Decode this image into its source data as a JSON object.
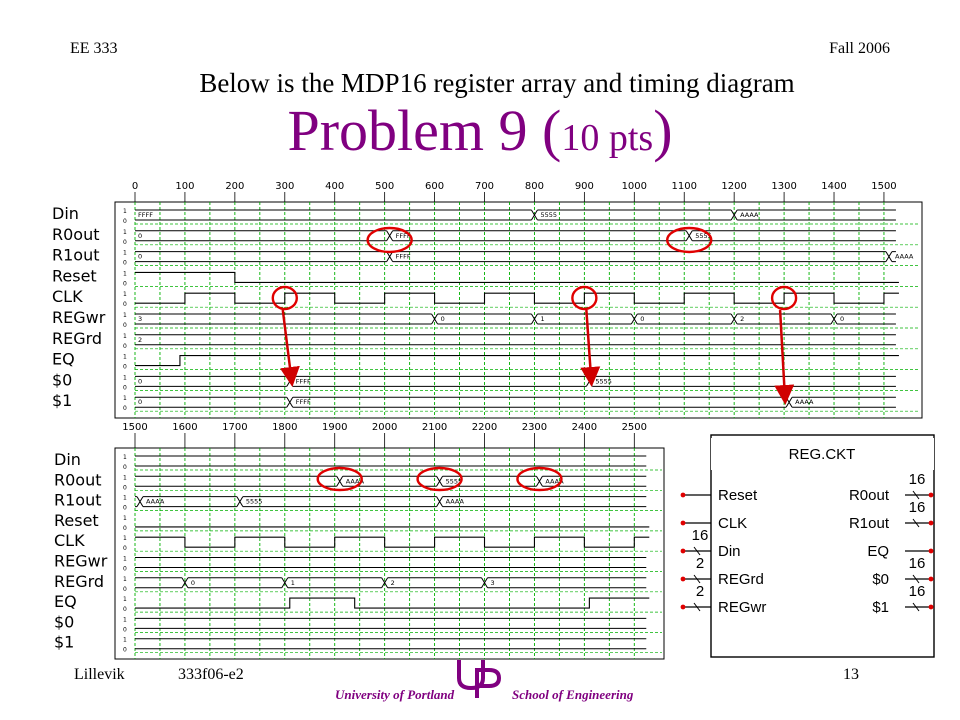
{
  "header": {
    "course": "EE 333",
    "term": "Fall 2006"
  },
  "subtitle": "Below is the MDP16 register array and timing diagram",
  "title": {
    "main": "Problem 9 (",
    "points": "10 pts",
    "close": ")"
  },
  "footer": {
    "author": "Lillevik",
    "code": "333f06-e2",
    "page": "13",
    "university": "University of Portland",
    "school": "School of Engineering"
  },
  "level_labels": [
    "1",
    "0"
  ],
  "timing_top": {
    "ticks": [
      "0",
      "100",
      "200",
      "300",
      "400",
      "500",
      "600",
      "700",
      "800",
      "900",
      "1000",
      "1100",
      "1200",
      "1300",
      "1400",
      "1500"
    ],
    "signals": [
      {
        "name": "Din",
        "values": [
          {
            "t": 0,
            "v": "FFFF"
          },
          {
            "t": 800,
            "v": "5555"
          },
          {
            "t": 1200,
            "v": "AAAA"
          }
        ]
      },
      {
        "name": "R0out",
        "values": [
          {
            "t": 0,
            "v": "0"
          },
          {
            "t": 510,
            "v": "FFFF"
          },
          {
            "t": 1110,
            "v": "5555"
          }
        ]
      },
      {
        "name": "R1out",
        "values": [
          {
            "t": 0,
            "v": "0"
          },
          {
            "t": 510,
            "v": "FFFF"
          },
          {
            "t": 1510,
            "v": "AAAA"
          }
        ]
      },
      {
        "name": "Reset",
        "wave": [
          [
            0,
            1
          ],
          [
            200,
            0
          ]
        ]
      },
      {
        "name": "CLK",
        "wave": [
          [
            0,
            0
          ],
          [
            100,
            1
          ],
          [
            200,
            0
          ],
          [
            300,
            1
          ],
          [
            400,
            0
          ],
          [
            500,
            1
          ],
          [
            600,
            0
          ],
          [
            700,
            1
          ],
          [
            800,
            0
          ],
          [
            900,
            1
          ],
          [
            1000,
            0
          ],
          [
            1100,
            1
          ],
          [
            1200,
            0
          ],
          [
            1300,
            1
          ],
          [
            1400,
            0
          ],
          [
            1500,
            1
          ]
        ]
      },
      {
        "name": "REGwr",
        "values": [
          {
            "t": 0,
            "v": "3"
          },
          {
            "t": 600,
            "v": "0"
          },
          {
            "t": 800,
            "v": "1"
          },
          {
            "t": 1000,
            "v": "0"
          },
          {
            "t": 1200,
            "v": "2"
          },
          {
            "t": 1400,
            "v": "0"
          }
        ]
      },
      {
        "name": "REGrd",
        "values": [
          {
            "t": 0,
            "v": "2"
          }
        ]
      },
      {
        "name": "EQ",
        "wave": [
          [
            0,
            0
          ],
          [
            90,
            1
          ]
        ]
      },
      {
        "name": "$0",
        "values": [
          {
            "t": 0,
            "v": "0"
          },
          {
            "t": 310,
            "v": "FFFF"
          },
          {
            "t": 910,
            "v": "5555"
          }
        ]
      },
      {
        "name": "$1",
        "values": [
          {
            "t": 0,
            "v": "0"
          },
          {
            "t": 310,
            "v": "FFFF"
          },
          {
            "t": 1310,
            "v": "AAAA"
          }
        ]
      }
    ]
  },
  "timing_bottom": {
    "ticks": [
      "1500",
      "1600",
      "1700",
      "1800",
      "1900",
      "2000",
      "2100",
      "2200",
      "2300",
      "2400",
      "2500"
    ],
    "signals": [
      {
        "name": "Din",
        "values": [
          {
            "t": 1500,
            "v": ""
          }
        ]
      },
      {
        "name": "R0out",
        "values": [
          {
            "t": 1500,
            "v": ""
          },
          {
            "t": 1910,
            "v": "AAAA"
          },
          {
            "t": 2110,
            "v": "5555"
          },
          {
            "t": 2310,
            "v": "AAAA"
          }
        ]
      },
      {
        "name": "R1out",
        "values": [
          {
            "t": 1500,
            "v": ""
          },
          {
            "t": 1510,
            "v": "AAAA"
          },
          {
            "t": 1710,
            "v": "5555"
          },
          {
            "t": 2110,
            "v": "AAAA"
          }
        ]
      },
      {
        "name": "Reset",
        "wave": [
          [
            1500,
            0
          ]
        ]
      },
      {
        "name": "CLK",
        "wave": [
          [
            1500,
            1
          ],
          [
            1600,
            0
          ],
          [
            1700,
            1
          ],
          [
            1800,
            0
          ],
          [
            1900,
            1
          ],
          [
            2000,
            0
          ],
          [
            2100,
            1
          ],
          [
            2200,
            0
          ],
          [
            2300,
            1
          ],
          [
            2400,
            0
          ],
          [
            2500,
            1
          ]
        ]
      },
      {
        "name": "REGwr",
        "values": [
          {
            "t": 1500,
            "v": ""
          }
        ]
      },
      {
        "name": "REGrd",
        "values": [
          {
            "t": 1500,
            "v": ""
          },
          {
            "t": 1600,
            "v": "0"
          },
          {
            "t": 1800,
            "v": "1"
          },
          {
            "t": 2000,
            "v": "2"
          },
          {
            "t": 2200,
            "v": "3"
          }
        ]
      },
      {
        "name": "EQ",
        "wave": [
          [
            1500,
            0
          ],
          [
            1810,
            1
          ],
          [
            1940,
            0
          ],
          [
            2410,
            1
          ]
        ]
      },
      {
        "name": "$0",
        "values": [
          {
            "t": 1500,
            "v": ""
          }
        ]
      },
      {
        "name": "$1",
        "values": [
          {
            "t": 1500,
            "v": ""
          }
        ]
      }
    ]
  },
  "block": {
    "name": "REG.CKT",
    "inputs": [
      {
        "name": "Reset",
        "width": ""
      },
      {
        "name": "CLK",
        "width": ""
      },
      {
        "name": "Din",
        "width": "16"
      },
      {
        "name": "REGrd",
        "width": "2"
      },
      {
        "name": "REGwr",
        "width": "2"
      }
    ],
    "outputs": [
      {
        "name": "R0out",
        "width": "16"
      },
      {
        "name": "R1out",
        "width": "16"
      },
      {
        "name": "EQ",
        "width": ""
      },
      {
        "name": "$0",
        "width": "16"
      },
      {
        "name": "$1",
        "width": "16"
      }
    ]
  },
  "colors": {
    "title": "#800080",
    "grid": "#00b000",
    "circle": "#e00000",
    "arrow": "#d00000"
  }
}
